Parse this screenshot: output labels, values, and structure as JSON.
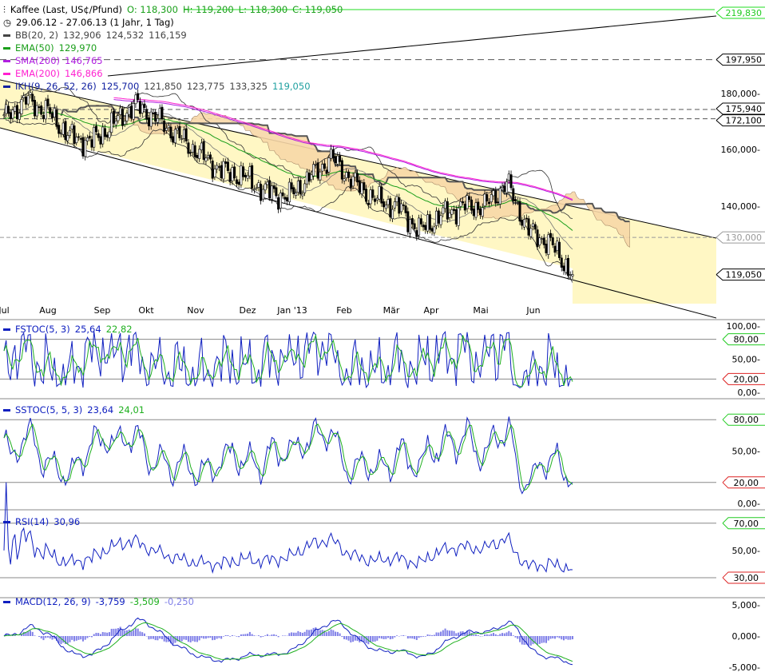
{
  "header": {
    "instrument": "Kaffee (Last, US¢/Pfund)",
    "ohlc": {
      "open": "O: 118,300",
      "high": "H: 119,200",
      "low": "L: 118,300",
      "close": "C: 119,050"
    },
    "period": "29.06.12 - 27.06.13 (1 Jahr, 1 Tag)"
  },
  "legend": {
    "bb": {
      "label": "BB(20, 2)",
      "values": [
        "132,906",
        "124,532",
        "116,159"
      ],
      "color": "#444444"
    },
    "ema50": {
      "label": "EMA(50)",
      "value": "129,970",
      "color": "#1a9e1a"
    },
    "sma200": {
      "label": "SMA(200)",
      "value": "146,765",
      "color": "#b020e0"
    },
    "ema200": {
      "label": "EMA(200)",
      "value": "146,866",
      "color": "#ff20d0"
    },
    "ikh": {
      "label": "IKH(9, 26, 52, 26)",
      "values": [
        "125,700",
        "121,850",
        "123,775",
        "133,325"
      ],
      "last": "119,050",
      "color": "#1020a0"
    }
  },
  "chart_data": [
    {
      "type": "candlestick",
      "title": "Kaffee (Last, US¢/Pfund)",
      "yscale": "log",
      "ylim": [
        112,
        222
      ],
      "x_ticks": [
        "Jul",
        "Aug",
        "Sep",
        "Okt",
        "Nov",
        "Dez",
        "Jan '13",
        "Feb",
        "Mär",
        "Apr",
        "Mai",
        "Jun"
      ],
      "y_ticks": [
        "180,000",
        "160,000",
        "140,000"
      ],
      "closes_approx": [
        {
          "date": "29.06.12",
          "close": 172
        },
        {
          "date": "13.07.12",
          "close": 180
        },
        {
          "date": "27.07.12",
          "close": 175
        },
        {
          "date": "10.08.12",
          "close": 165
        },
        {
          "date": "24.08.12",
          "close": 163
        },
        {
          "date": "07.09.12",
          "close": 170
        },
        {
          "date": "21.09.12",
          "close": 178
        },
        {
          "date": "05.10.12",
          "close": 172
        },
        {
          "date": "19.10.12",
          "close": 165
        },
        {
          "date": "02.11.12",
          "close": 158
        },
        {
          "date": "16.11.12",
          "close": 152
        },
        {
          "date": "30.11.12",
          "close": 150
        },
        {
          "date": "14.12.12",
          "close": 145
        },
        {
          "date": "28.12.12",
          "close": 143
        },
        {
          "date": "11.01.13",
          "close": 150
        },
        {
          "date": "25.01.13",
          "close": 157
        },
        {
          "date": "08.02.13",
          "close": 148
        },
        {
          "date": "22.02.13",
          "close": 142
        },
        {
          "date": "08.03.13",
          "close": 140
        },
        {
          "date": "22.03.13",
          "close": 132
        },
        {
          "date": "05.04.13",
          "close": 137
        },
        {
          "date": "19.04.13",
          "close": 140
        },
        {
          "date": "03.05.13",
          "close": 140
        },
        {
          "date": "17.05.13",
          "close": 148
        },
        {
          "date": "31.05.13",
          "close": 132
        },
        {
          "date": "14.06.13",
          "close": 128
        },
        {
          "date": "27.06.13",
          "close": 119.05
        }
      ],
      "price_markers": [
        {
          "label": "219,830",
          "value": 219.83,
          "color": "#22dd22"
        },
        {
          "label": "197,950",
          "value": 197.95,
          "color": "#000000"
        },
        {
          "label": "175,940",
          "value": 175.94,
          "color": "#000000"
        },
        {
          "label": "172,100",
          "value": 172.1,
          "color": "#000000"
        },
        {
          "label": "130,000",
          "value": 130.0,
          "color": "#999999"
        },
        {
          "label": "119,050",
          "value": 119.05,
          "color": "#000000"
        }
      ]
    },
    {
      "type": "line",
      "name": "FSTOC(5, 3)",
      "values_last": [
        "25,64",
        "22,82"
      ],
      "ylim": [
        0,
        100
      ],
      "y_ticks": [
        "100,00",
        "50,00",
        "0,00"
      ],
      "levels": [
        {
          "label": "80,00",
          "value": 80
        },
        {
          "label": "20,00",
          "value": 20
        }
      ]
    },
    {
      "type": "line",
      "name": "SSTOC(5, 5, 3)",
      "values_last": [
        "23,64",
        "24,01"
      ],
      "ylim": [
        0,
        100
      ],
      "y_ticks": [
        "50,00",
        "0,00"
      ],
      "levels": [
        {
          "label": "80,00",
          "value": 80
        },
        {
          "label": "20,00",
          "value": 20
        }
      ]
    },
    {
      "type": "line",
      "name": "RSI(14)",
      "values_last": [
        "30,96"
      ],
      "ylim": [
        0,
        100
      ],
      "y_ticks": [
        "50,00"
      ],
      "levels": [
        {
          "label": "70,00",
          "value": 70
        },
        {
          "label": "30,00",
          "value": 30
        }
      ]
    },
    {
      "type": "line+bar",
      "name": "MACD(12, 26, 9)",
      "values_last": [
        "-3,759",
        "-3,509",
        "-0,250"
      ],
      "ylim": [
        -5000,
        5000
      ],
      "y_ticks": [
        "5,000",
        "0,000",
        "-5,000"
      ]
    }
  ],
  "panels": {
    "fstoc": {
      "label": "FSTOC(5, 3)",
      "v1": "25,64",
      "v2": "22,82"
    },
    "sstoc": {
      "label": "SSTOC(5, 5, 3)",
      "v1": "23,64",
      "v2": "24,01"
    },
    "rsi": {
      "label": "RSI(14)",
      "v1": "30,96"
    },
    "macd": {
      "label": "MACD(12, 26, 9)",
      "v1": "-3,759",
      "v2": "-3,509",
      "v3": "-0,250"
    }
  },
  "colors": {
    "channel": "#fff7c4",
    "cloud": "#f8d8a8",
    "up_marker": "#22dd22",
    "down_marker": "#dd2222",
    "blue": "#1020c0",
    "green": "#20b020",
    "macd_hist": "#8080e8",
    "rsi_fill": "#e8a0a0"
  }
}
